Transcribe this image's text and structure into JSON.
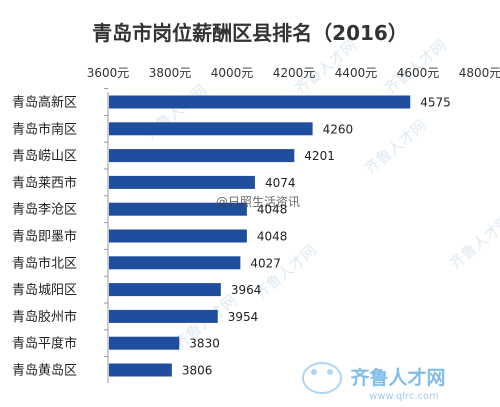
{
  "chart_data": {
    "type": "bar",
    "orientation": "horizontal",
    "title": "青岛市岗位薪酬区县排名（2016）",
    "categories": [
      "青岛高新区",
      "青岛市南区",
      "青岛崂山区",
      "青岛莱西市",
      "青岛李沧区",
      "青岛即墨市",
      "青岛市北区",
      "青岛城阳区",
      "青岛胶州市",
      "青岛平度市",
      "青岛黄岛区"
    ],
    "values": [
      4575,
      4260,
      4201,
      4074,
      4048,
      4048,
      4027,
      3964,
      3954,
      3830,
      3806
    ],
    "data_labels": [
      "4575",
      "4260",
      "4201",
      "4074",
      "4048",
      "4048",
      "4027",
      "3964",
      "3954",
      "3830",
      "3806"
    ],
    "xlim": [
      3600,
      4800
    ],
    "x_ticks": [
      3600,
      3800,
      4000,
      4200,
      4400,
      4600,
      4800
    ],
    "x_tick_labels": [
      "3600元",
      "3800元",
      "4000元",
      "4200元",
      "4400元",
      "4600元",
      "4800元"
    ],
    "x_axis_position": "top",
    "grid": false,
    "bar_color": "#1f4e9e",
    "xlabel": "",
    "ylabel": ""
  },
  "watermarks": {
    "weibo": "@日照生活资讯",
    "site_logo": "齐鲁人才网",
    "site_url": "www.qlrc.com",
    "repeated": "齐鲁人才网"
  }
}
